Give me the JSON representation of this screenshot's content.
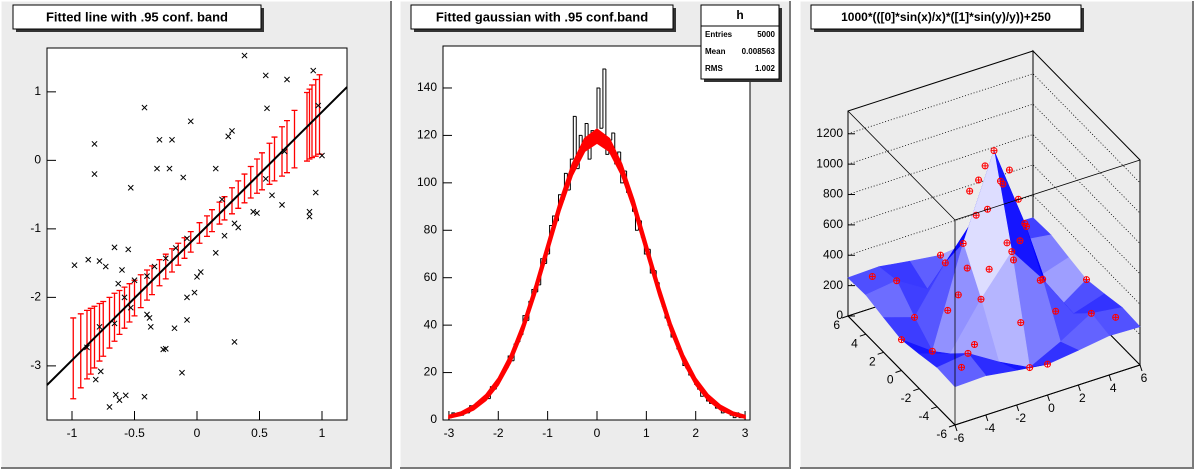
{
  "chart_data": [
    {
      "type": "scatter",
      "title": "Fitted line with .95 conf. band",
      "xlim": [
        -1.2,
        1.2
      ],
      "ylim": [
        -3.79,
        1.64
      ],
      "xticks": [
        -1,
        -0.5,
        0,
        0.5,
        1
      ],
      "yticks": [
        -3,
        -2,
        -1,
        0,
        1
      ],
      "points": {
        "color": "#000000",
        "x": [
          -0.98,
          -0.87,
          -0.78,
          -0.73,
          -0.82,
          -0.82,
          -0.66,
          -0.63,
          -0.53,
          -0.42,
          -0.32,
          -0.3,
          -0.22,
          -0.2,
          -0.11,
          -0.05,
          0.15,
          0.2,
          0.25,
          0.28,
          0.38,
          0.48,
          0.55,
          0.56,
          0.55,
          0.6,
          0.68,
          0.7,
          0.72,
          0.9,
          0.9,
          0.95,
          0.93,
          1.0,
          0.97,
          -0.65,
          -0.62,
          -0.7,
          -0.57,
          -0.42,
          -0.12,
          -0.25,
          -0.27,
          -0.18,
          -0.08,
          0.3,
          -0.77,
          -0.81,
          -0.88,
          -0.78,
          -0.66,
          -0.53,
          -0.4,
          -0.38,
          -0.37,
          -0.5,
          -0.58,
          -0.4,
          -0.34,
          -0.17,
          -0.08,
          -0.02,
          0.0,
          0.03,
          0.15,
          0.22,
          0.3,
          0.33,
          0.45,
          -0.25,
          -0.08,
          -0.55,
          -0.6
        ],
        "values": [
          -1.53,
          -1.45,
          -1.47,
          -1.55,
          0.24,
          -0.2,
          -1.27,
          -1.8,
          -0.4,
          0.77,
          -0.12,
          0.3,
          -0.12,
          0.3,
          -0.25,
          0.57,
          -0.12,
          -0.57,
          0.35,
          0.43,
          1.53,
          -0.77,
          1.24,
          0.76,
          -0.27,
          -0.51,
          -0.65,
          0.13,
          1.18,
          -0.75,
          -0.82,
          -0.47,
          1.31,
          0.07,
          0.8,
          -3.42,
          -3.5,
          -3.6,
          -3.43,
          -3.45,
          -3.1,
          -2.75,
          -2.76,
          -2.45,
          -2.33,
          -2.65,
          -3.08,
          -3.2,
          -2.73,
          -2.43,
          -2.38,
          -2.15,
          -2.25,
          -2.3,
          -2.43,
          -1.75,
          -2.0,
          -1.69,
          -1.55,
          -1.28,
          -2.0,
          -1.93,
          -1.7,
          -1.63,
          -1.35,
          -1.1,
          -0.92,
          -0.98,
          -0.75,
          -1.43,
          -1.14,
          -1.3,
          -1.6
        ]
      },
      "conf_band": {
        "color": "#ff0000",
        "x": [
          -0.99,
          -0.93,
          -0.88,
          -0.85,
          -0.82,
          -0.78,
          -0.75,
          -0.7,
          -0.66,
          -0.62,
          -0.58,
          -0.54,
          -0.5,
          -0.45,
          -0.4,
          -0.36,
          -0.3,
          -0.25,
          -0.2,
          -0.15,
          -0.1,
          -0.05,
          0.02,
          0.08,
          0.12,
          0.18,
          0.22,
          0.28,
          0.33,
          0.38,
          0.43,
          0.48,
          0.52,
          0.58,
          0.62,
          0.68,
          0.72,
          0.78,
          0.88,
          0.9,
          0.92,
          0.95,
          0.98
        ],
        "values": [
          -2.89,
          -2.78,
          -2.69,
          -2.64,
          -2.58,
          -2.51,
          -2.46,
          -2.37,
          -2.29,
          -2.22,
          -2.15,
          -2.08,
          -2.01,
          -1.91,
          -1.82,
          -1.75,
          -1.64,
          -1.55,
          -1.46,
          -1.37,
          -1.28,
          -1.19,
          -1.06,
          -0.96,
          -0.88,
          -0.77,
          -0.7,
          -0.59,
          -0.5,
          -0.41,
          -0.32,
          -0.23,
          -0.16,
          -0.05,
          0.02,
          0.13,
          0.2,
          0.31,
          0.49,
          0.53,
          0.57,
          0.62,
          0.67
        ],
        "errors": [
          0.59,
          0.54,
          0.5,
          0.48,
          0.45,
          0.42,
          0.4,
          0.37,
          0.35,
          0.32,
          0.3,
          0.28,
          0.26,
          0.24,
          0.22,
          0.21,
          0.19,
          0.18,
          0.17,
          0.16,
          0.15,
          0.15,
          0.15,
          0.15,
          0.16,
          0.16,
          0.17,
          0.19,
          0.2,
          0.21,
          0.23,
          0.25,
          0.27,
          0.3,
          0.32,
          0.36,
          0.38,
          0.42,
          0.5,
          0.51,
          0.53,
          0.56,
          0.58
        ]
      },
      "fit_line": {
        "color": "#000000",
        "x": [
          -1.2,
          1.2
        ],
        "values": [
          -3.28,
          1.07
        ]
      }
    },
    {
      "type": "histogram",
      "title": "Fitted gaussian with .95 conf.band",
      "xlim": [
        -3.12,
        3.1
      ],
      "ylim": [
        0,
        157.7
      ],
      "xticks": [
        -3,
        -2,
        -1,
        0,
        1,
        2,
        3
      ],
      "yticks": [
        0,
        20,
        40,
        60,
        80,
        100,
        120,
        140
      ],
      "color": "#000000",
      "bins": [
        -3,
        -2.94,
        -2.88,
        -2.82,
        -2.76,
        -2.7,
        -2.64,
        -2.58,
        -2.52,
        -2.46,
        -2.4,
        -2.34,
        -2.28,
        -2.22,
        -2.16,
        -2.1,
        -2.04,
        -1.98,
        -1.92,
        -1.86,
        -1.8,
        -1.74,
        -1.68,
        -1.62,
        -1.56,
        -1.5,
        -1.44,
        -1.38,
        -1.32,
        -1.26,
        -1.2,
        -1.14,
        -1.08,
        -1.02,
        -0.96,
        -0.9,
        -0.84,
        -0.78,
        -0.72,
        -0.66,
        -0.6,
        -0.54,
        -0.48,
        -0.42,
        -0.36,
        -0.3,
        -0.24,
        -0.18,
        -0.12,
        -0.06,
        0,
        0.06,
        0.12,
        0.18,
        0.24,
        0.3,
        0.36,
        0.42,
        0.48,
        0.54,
        0.6,
        0.66,
        0.72,
        0.78,
        0.84,
        0.9,
        0.96,
        1.02,
        1.08,
        1.14,
        1.2,
        1.26,
        1.32,
        1.38,
        1.44,
        1.5,
        1.56,
        1.62,
        1.68,
        1.74,
        1.8,
        1.86,
        1.92,
        1.98,
        2.04,
        2.1,
        2.16,
        2.22,
        2.28,
        2.34,
        2.4,
        2.46,
        2.52,
        2.58,
        2.64,
        2.7,
        2.76,
        2.82,
        2.88,
        2.94,
        3
      ],
      "values": [
        1,
        3,
        2,
        3,
        2,
        4,
        3,
        6,
        5,
        7,
        8,
        8,
        10,
        9,
        14,
        13,
        16,
        18,
        20,
        22,
        27,
        25,
        32,
        33,
        36,
        44,
        42,
        50,
        55,
        54,
        57,
        68,
        66,
        70,
        82,
        86,
        84,
        95,
        93,
        104,
        97,
        110,
        128,
        106,
        120,
        115,
        125,
        110,
        122,
        118,
        140,
        123,
        148,
        112,
        118,
        121,
        108,
        113,
        100,
        105,
        96,
        94,
        88,
        80,
        84,
        77,
        70,
        72,
        62,
        63,
        58,
        52,
        48,
        43,
        40,
        35,
        34,
        30,
        28,
        23,
        22,
        19,
        18,
        15,
        13,
        10,
        11,
        8,
        7,
        8,
        5,
        5,
        3,
        4,
        3,
        2,
        1,
        3,
        1,
        2
      ],
      "fit_band": {
        "color": "#ff0000",
        "x": [
          -3,
          -2.75,
          -2.5,
          -2.25,
          -2,
          -1.75,
          -1.5,
          -1.25,
          -1,
          -0.75,
          -0.5,
          -0.25,
          0,
          0.25,
          0.5,
          0.75,
          1,
          1.25,
          1.5,
          1.75,
          2,
          2.25,
          2.5,
          2.75,
          3
        ],
        "lower": [
          0.8,
          2.0,
          4.3,
          8.3,
          14.8,
          24.2,
          37.0,
          52.8,
          70.4,
          88.1,
          103.2,
          113.3,
          116.8,
          113.3,
          103.2,
          88.1,
          70.4,
          52.8,
          37.0,
          24.2,
          14.8,
          8.3,
          4.3,
          2.0,
          0.8
        ],
        "upper": [
          1.9,
          3.4,
          6.2,
          10.7,
          17.6,
          27.6,
          40.8,
          57.0,
          74.8,
          92.7,
          108.0,
          118.7,
          122.6,
          118.7,
          108.0,
          92.7,
          74.8,
          57.0,
          40.8,
          27.6,
          17.6,
          10.7,
          6.2,
          3.4,
          1.9
        ]
      },
      "stats": {
        "title": "h",
        "rows": [
          [
            "Entries",
            5000
          ],
          [
            "Mean",
            0.008563
          ],
          [
            "RMS",
            1.002
          ]
        ]
      }
    },
    {
      "type": "surface3d",
      "title": "1000*(([0]*sin(x)/x)*([1]*sin(y)/y))+250",
      "xlim": [
        -6,
        6
      ],
      "ylim": [
        -6,
        6
      ],
      "zlim": [
        0,
        1350
      ],
      "xticks": [
        -6,
        -4,
        -2,
        0,
        2,
        4,
        6
      ],
      "yticks": [
        -6,
        -4,
        -2,
        0,
        2,
        4,
        6
      ],
      "zticks": [
        0,
        200,
        400,
        600,
        800,
        1000,
        1200
      ],
      "surface": {
        "color": "#0000ff",
        "x": [
          -6,
          -4,
          -2,
          0,
          2,
          4,
          6
        ],
        "y": [
          -6,
          -4,
          -2,
          0,
          2,
          4,
          6
        ],
        "z": [
          [
            252,
            259,
            229,
            203,
            229,
            259,
            252
          ],
          [
            259,
            286,
            164,
            61,
            164,
            286,
            259
          ],
          [
            229,
            164,
            457,
            705,
            457,
            164,
            229
          ],
          [
            203,
            61,
            705,
            1250,
            705,
            61,
            203
          ],
          [
            229,
            164,
            457,
            705,
            457,
            164,
            229
          ],
          [
            259,
            286,
            164,
            61,
            164,
            286,
            259
          ],
          [
            252,
            259,
            229,
            203,
            229,
            259,
            252
          ]
        ]
      },
      "points": {
        "color": "#ff0000",
        "x": [
          0,
          1,
          0,
          -1,
          0,
          1,
          -1,
          1,
          -1,
          2,
          0,
          -2,
          0,
          2,
          -2,
          2,
          -2,
          3,
          0,
          -3,
          0,
          4,
          0,
          -4,
          0,
          4,
          -4,
          4,
          -4,
          5,
          -5,
          5,
          -5,
          6,
          0,
          -6,
          0,
          3,
          -3,
          2,
          -4
        ],
        "y": [
          0,
          0,
          1,
          0,
          -1,
          1,
          -1,
          -1,
          1,
          0,
          2,
          0,
          -2,
          2,
          -2,
          -2,
          2,
          0,
          3,
          0,
          -3,
          0,
          4,
          0,
          -4,
          4,
          -4,
          -4,
          4,
          5,
          -5,
          -5,
          5,
          0,
          6,
          0,
          -6,
          3,
          -3,
          4,
          2
        ],
        "z": [
          1250,
          1090,
          1090,
          1090,
          1090,
          957,
          957,
          957,
          957,
          705,
          705,
          705,
          705,
          457,
          457,
          457,
          457,
          297,
          297,
          297,
          297,
          61,
          61,
          61,
          61,
          286,
          286,
          286,
          286,
          287,
          287,
          287,
          287,
          203,
          203,
          203,
          203,
          252,
          252,
          164,
          164
        ]
      }
    }
  ]
}
